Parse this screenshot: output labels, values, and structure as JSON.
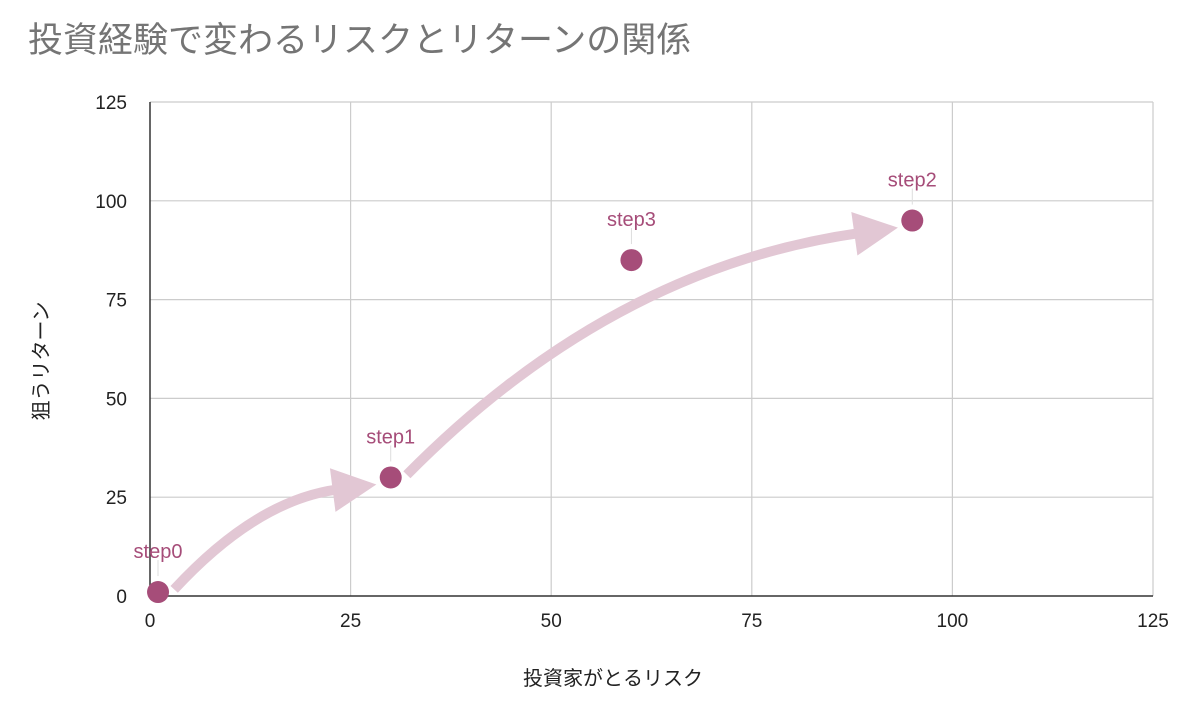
{
  "colors": {
    "point": "#a64d79",
    "arrow": "#e2c7d4",
    "grid": "#cccccc",
    "axis": "#333333",
    "title": "#757575"
  },
  "chart_data": {
    "type": "scatter",
    "title": "投資経験で変わるリスクとリターンの関係",
    "xlabel": "投資家がとるリスク",
    "ylabel": "狙うリターン",
    "xlim": [
      0,
      125
    ],
    "ylim": [
      0,
      125
    ],
    "xticks": [
      "0",
      "25",
      "50",
      "75",
      "100",
      "125"
    ],
    "yticks": [
      "0",
      "25",
      "50",
      "75",
      "100",
      "125"
    ],
    "grid": true,
    "points": [
      {
        "label": "step0",
        "x": 1,
        "y": 1
      },
      {
        "label": "step1",
        "x": 30,
        "y": 30
      },
      {
        "label": "step2",
        "x": 95,
        "y": 95
      },
      {
        "label": "step3",
        "x": 60,
        "y": 85
      }
    ],
    "annotations": [
      {
        "type": "curved-arrow",
        "from": "step0",
        "to": "step1"
      },
      {
        "type": "curved-arrow",
        "from": "step1",
        "to": "step2"
      }
    ]
  }
}
